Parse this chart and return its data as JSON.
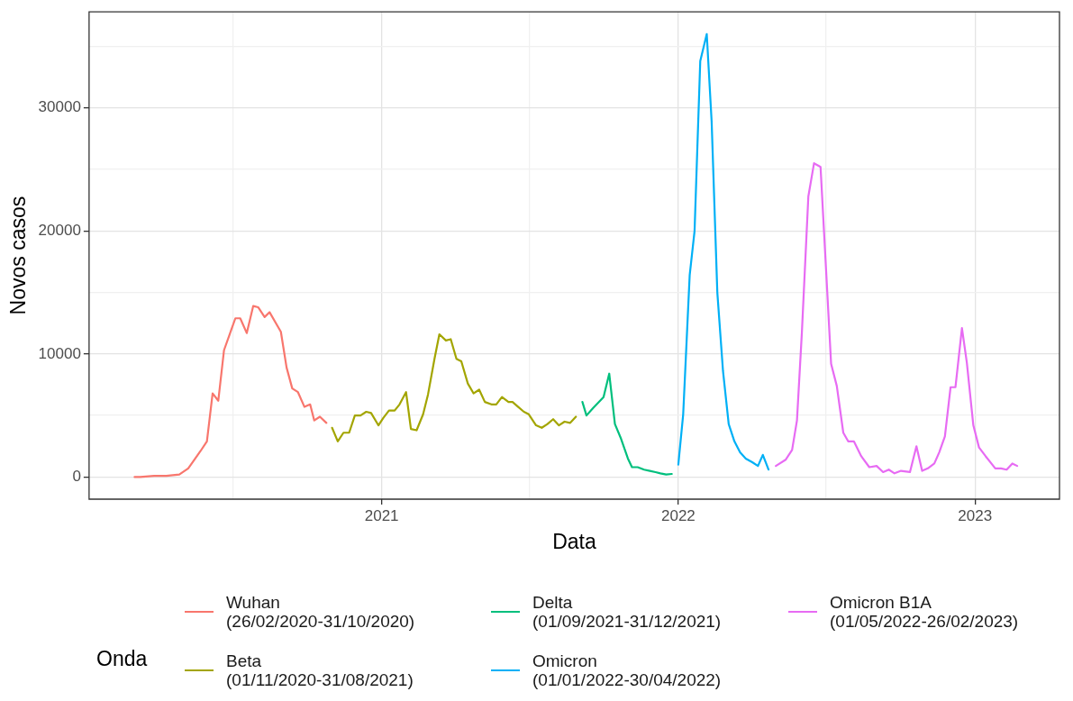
{
  "chart_data": {
    "type": "line",
    "xlabel": "Data",
    "ylabel": "Novos casos",
    "legend_title": "Onda",
    "legend": "bottom",
    "grid": true,
    "marker": "none",
    "line_style": "solid",
    "xlim": [
      "2020-01-07",
      "2023-04-15"
    ],
    "xticks": [
      {
        "value": "2020-07-02",
        "label": null
      },
      {
        "value": "2021",
        "label": "2021"
      },
      {
        "value": "2021-07-02",
        "label": null
      },
      {
        "value": "2022",
        "label": "2022"
      },
      {
        "value": "2022-07-02",
        "label": null
      },
      {
        "value": "2023",
        "label": "2023"
      }
    ],
    "ylim": [
      -1800,
      37800
    ],
    "yticks": [
      0,
      {
        "value": 5000,
        "label": null
      },
      10000,
      {
        "value": 15000,
        "label": null
      },
      20000,
      {
        "value": 25000,
        "label": null
      },
      30000,
      {
        "value": 35000,
        "label": null
      }
    ],
    "series": [
      {
        "name": "Wuhan\n(26/02/2020-31/10/2020)",
        "color": "#f8766d",
        "x": [
          "2020-03-03",
          "2020-03-10",
          "2020-03-27",
          "2020-04-11",
          "2020-04-27",
          "2020-05-08",
          "2020-05-23",
          "2020-05-31",
          "2020-06-07",
          "2020-06-14",
          "2020-06-21",
          "2020-07-05",
          "2020-07-11",
          "2020-07-19",
          "2020-07-27",
          "2020-08-02",
          "2020-08-10",
          "2020-08-16",
          "2020-08-30",
          "2020-09-06",
          "2020-09-13",
          "2020-09-20",
          "2020-09-28",
          "2020-10-05",
          "2020-10-10",
          "2020-10-17",
          "2020-10-25"
        ],
        "values": [
          0,
          0,
          100,
          100,
          200,
          700,
          2100,
          2900,
          6800,
          6200,
          10300,
          12900,
          12900,
          11700,
          13900,
          13800,
          13000,
          13400,
          11800,
          8900,
          7200,
          6900,
          5700,
          5900,
          4600,
          4900,
          4400
        ]
      },
      {
        "name": "Beta\n(01/11/2020-31/08/2021)",
        "color": "#a3a500",
        "x": [
          "2020-11-01",
          "2020-11-08",
          "2020-11-15",
          "2020-11-22",
          "2020-11-29",
          "2020-12-06",
          "2020-12-13",
          "2020-12-19",
          "2020-12-28",
          "2021-01-03",
          "2021-01-10",
          "2021-01-17",
          "2021-01-23",
          "2021-01-31",
          "2021-02-06",
          "2021-02-13",
          "2021-02-21",
          "2021-02-27",
          "2021-03-07",
          "2021-03-13",
          "2021-03-21",
          "2021-03-27",
          "2021-04-03",
          "2021-04-09",
          "2021-04-17",
          "2021-04-24",
          "2021-05-01",
          "2021-05-08",
          "2021-05-16",
          "2021-05-22",
          "2021-05-29",
          "2021-06-06",
          "2021-06-11",
          "2021-06-18",
          "2021-06-25",
          "2021-07-01",
          "2021-07-10",
          "2021-07-17",
          "2021-07-24",
          "2021-07-31",
          "2021-08-07",
          "2021-08-14",
          "2021-08-21",
          "2021-08-28"
        ],
        "values": [
          4000,
          2900,
          3600,
          3600,
          5000,
          5000,
          5300,
          5200,
          4200,
          4800,
          5400,
          5400,
          5900,
          6900,
          3900,
          3800,
          5100,
          6700,
          9600,
          11600,
          11100,
          11200,
          9600,
          9400,
          7600,
          6800,
          7100,
          6100,
          5900,
          5900,
          6500,
          6100,
          6100,
          5700,
          5300,
          5100,
          4200,
          4000,
          4300,
          4700,
          4200,
          4500,
          4400,
          4900
        ]
      },
      {
        "name": "Delta\n(01/09/2021-31/12/2021)",
        "color": "#00bf7d",
        "x": [
          "2021-09-05",
          "2021-09-10",
          "2021-09-18",
          "2021-10-01",
          "2021-10-08",
          "2021-10-15",
          "2021-10-22",
          "2021-10-31",
          "2021-11-05",
          "2021-11-12",
          "2021-11-20",
          "2021-11-27",
          "2021-12-04",
          "2021-12-10",
          "2021-12-17",
          "2021-12-24"
        ],
        "values": [
          6100,
          5000,
          5600,
          6500,
          8400,
          4300,
          3200,
          1500,
          800,
          800,
          600,
          500,
          400,
          300,
          200,
          250
        ]
      },
      {
        "name": "Omicron\n(01/01/2022-30/04/2022)",
        "color": "#00b0f6",
        "x": [
          "2022-01-01",
          "2022-01-07",
          "2022-01-15",
          "2022-01-21",
          "2022-01-28",
          "2022-02-05",
          "2022-02-11",
          "2022-02-18",
          "2022-02-25",
          "2022-03-04",
          "2022-03-11",
          "2022-03-18",
          "2022-03-25",
          "2022-04-02",
          "2022-04-09",
          "2022-04-15",
          "2022-04-22"
        ],
        "values": [
          1000,
          5100,
          16400,
          20000,
          33800,
          36000,
          28900,
          15000,
          8600,
          4300,
          2900,
          2000,
          1500,
          1200,
          900,
          1800,
          600
        ]
      },
      {
        "name": "Omicron B1A\n(01/05/2022-26/02/2023)",
        "color": "#e76bf3",
        "x": [
          "2022-05-01",
          "2022-05-13",
          "2022-05-21",
          "2022-05-27",
          "2022-06-02",
          "2022-06-10",
          "2022-06-17",
          "2022-06-25",
          "2022-07-08",
          "2022-07-15",
          "2022-07-23",
          "2022-07-29",
          "2022-08-05",
          "2022-08-14",
          "2022-08-24",
          "2022-09-02",
          "2022-09-10",
          "2022-09-17",
          "2022-09-24",
          "2022-10-02",
          "2022-10-13",
          "2022-10-21",
          "2022-10-28",
          "2022-11-04",
          "2022-11-12",
          "2022-11-18",
          "2022-11-25",
          "2022-12-02",
          "2022-12-08",
          "2022-12-16",
          "2022-12-22",
          "2022-12-30",
          "2023-01-06",
          "2023-01-14",
          "2023-01-26",
          "2023-02-02",
          "2023-02-09",
          "2023-02-16",
          "2023-02-22"
        ],
        "values": [
          900,
          1400,
          2200,
          4600,
          11700,
          22800,
          25500,
          25200,
          9200,
          7400,
          3600,
          2900,
          2900,
          1700,
          800,
          900,
          400,
          600,
          300,
          500,
          400,
          2500,
          500,
          700,
          1100,
          2000,
          3300,
          7300,
          7300,
          12100,
          9300,
          4200,
          2400,
          1700,
          700,
          700,
          600,
          1100,
          900
        ]
      }
    ]
  }
}
